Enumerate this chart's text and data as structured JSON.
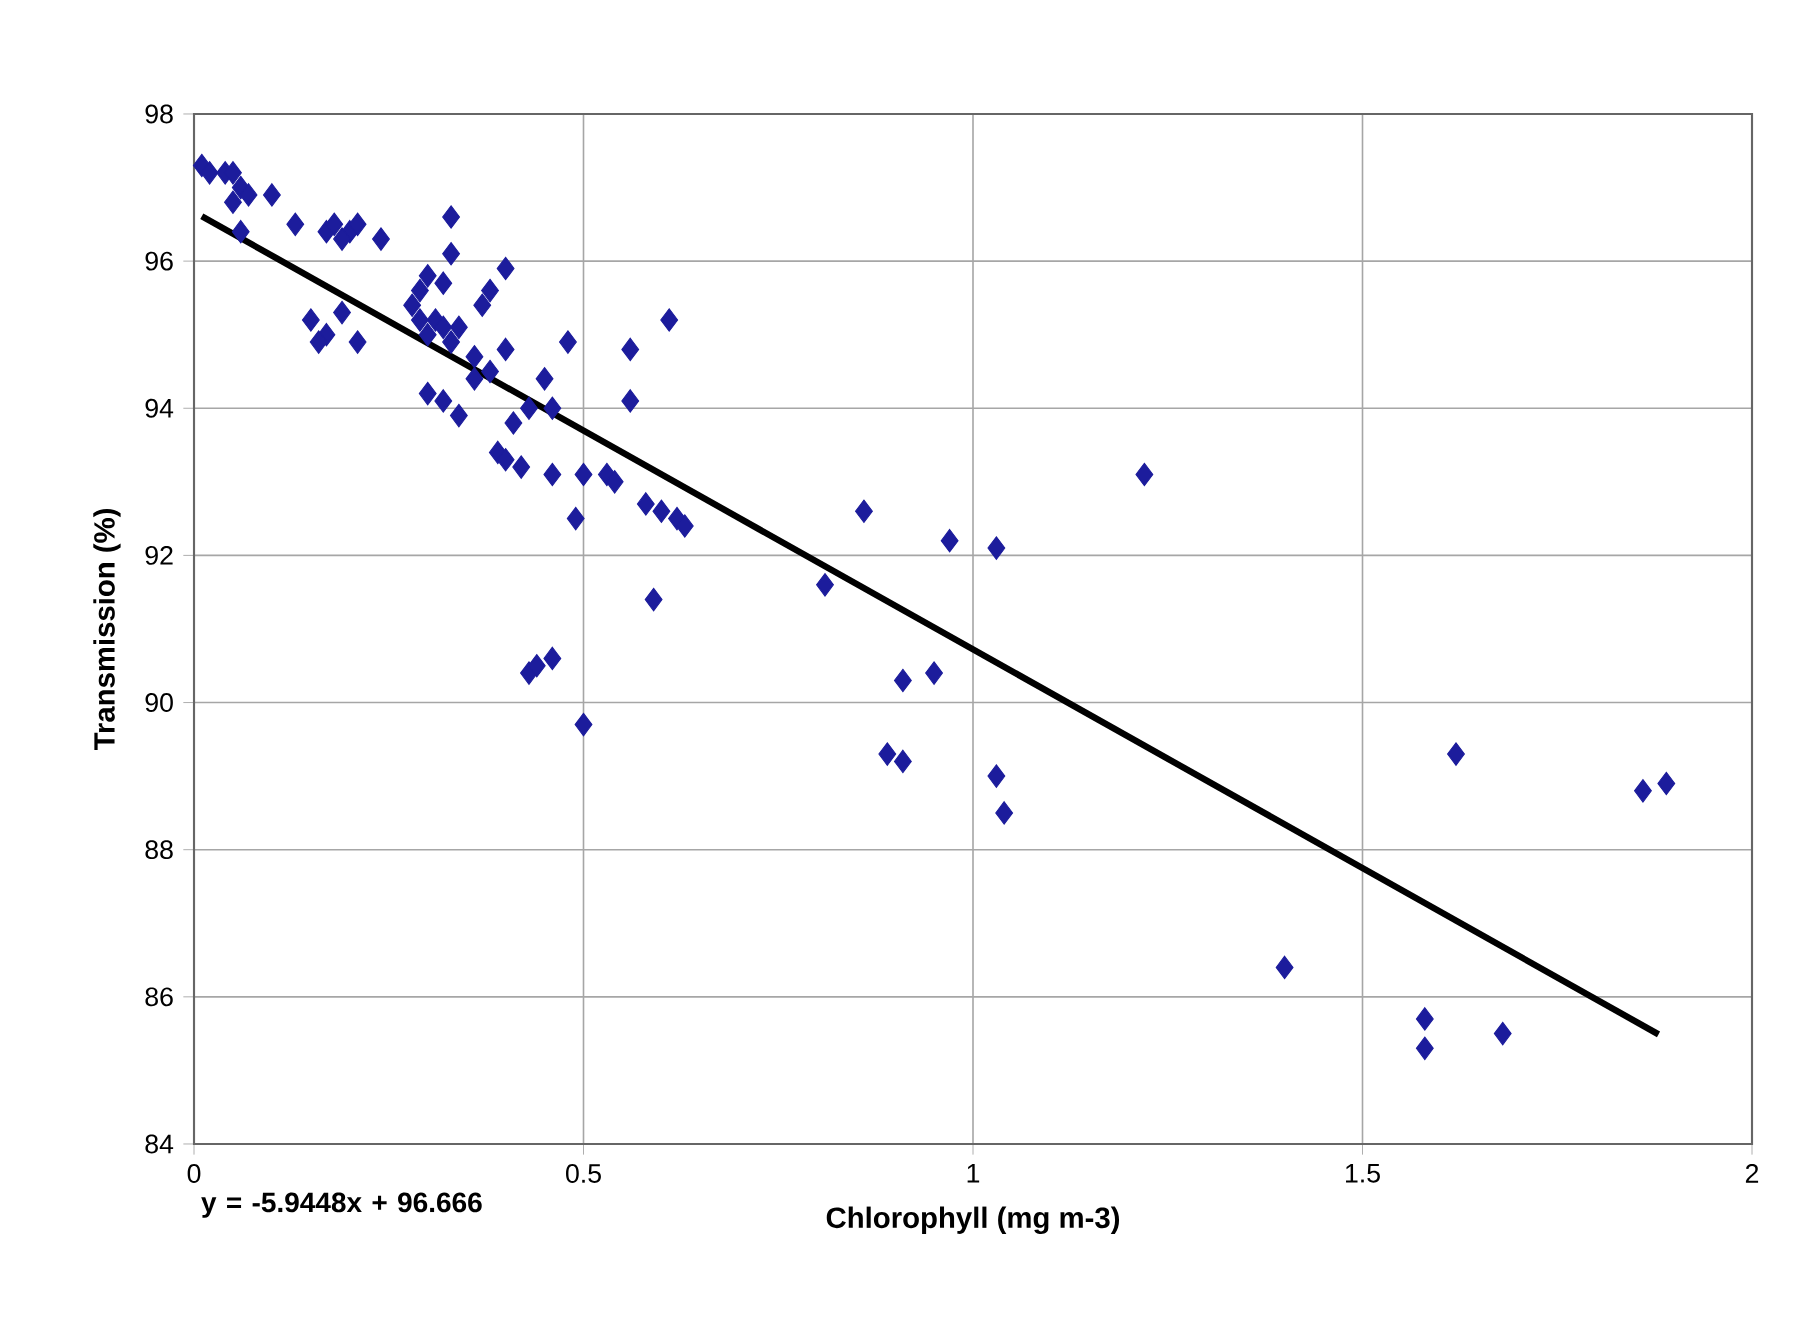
{
  "chart_data": {
    "type": "scatter",
    "xlabel": "Chlorophyll (mg m-3)",
    "ylabel": "Transmission (%)",
    "xlim": [
      0,
      2
    ],
    "xticks": [
      0,
      0.5,
      1,
      1.5,
      2
    ],
    "ylim": [
      84,
      98
    ],
    "yticks": [
      84,
      86,
      88,
      90,
      92,
      94,
      96,
      98
    ],
    "grid": true,
    "annotations": [
      "y = -5.9448x + 96.666"
    ],
    "series": [
      {
        "color": "#1c1c9c",
        "marker": "diamond",
        "x": [
          0.01,
          0.02,
          0.04,
          0.05,
          0.06,
          0.05,
          0.07,
          0.1,
          0.06,
          0.13,
          0.17,
          0.18,
          0.2,
          0.21,
          0.24,
          0.19,
          0.15,
          0.17,
          0.16,
          0.19,
          0.21,
          0.28,
          0.29,
          0.3,
          0.32,
          0.33,
          0.33,
          0.29,
          0.3,
          0.31,
          0.32,
          0.33,
          0.34,
          0.36,
          0.37,
          0.38,
          0.4,
          0.36,
          0.38,
          0.4,
          0.3,
          0.32,
          0.34,
          0.39,
          0.4,
          0.41,
          0.42,
          0.43,
          0.45,
          0.46,
          0.48,
          0.46,
          0.5,
          0.53,
          0.54,
          0.49,
          0.56,
          0.56,
          0.61,
          0.58,
          0.6,
          0.62,
          0.63,
          0.59,
          0.43,
          0.44,
          0.46,
          0.5,
          0.86,
          0.97,
          1.03,
          1.22,
          0.81,
          0.91,
          0.95,
          0.89,
          0.91,
          1.03,
          1.04,
          1.62,
          1.86,
          1.89,
          1.4,
          1.58,
          1.58,
          1.68
        ],
        "values": [
          97.3,
          97.2,
          97.2,
          97.2,
          97.0,
          96.8,
          96.9,
          96.9,
          96.4,
          96.5,
          96.4,
          96.5,
          96.4,
          96.5,
          96.3,
          96.3,
          95.2,
          95.0,
          94.9,
          95.3,
          94.9,
          95.4,
          95.6,
          95.8,
          95.7,
          96.6,
          96.1,
          95.2,
          95.0,
          95.2,
          95.1,
          94.9,
          95.1,
          94.7,
          95.4,
          95.6,
          95.9,
          94.4,
          94.5,
          94.8,
          94.2,
          94.1,
          93.9,
          93.4,
          93.3,
          93.8,
          93.2,
          94.0,
          94.4,
          94.0,
          94.9,
          93.1,
          93.1,
          93.1,
          93.0,
          92.5,
          94.8,
          94.1,
          95.2,
          92.7,
          92.6,
          92.5,
          92.4,
          91.4,
          90.4,
          90.5,
          90.6,
          89.7,
          92.6,
          92.2,
          92.1,
          93.1,
          91.6,
          90.3,
          90.4,
          89.3,
          89.2,
          89.0,
          88.5,
          89.3,
          88.8,
          88.9,
          86.4,
          85.7,
          85.3,
          85.5
        ]
      },
      {
        "type": "line",
        "color": "#000000",
        "x": [
          0.01,
          1.88
        ],
        "values": [
          96.61,
          85.49
        ]
      }
    ]
  }
}
